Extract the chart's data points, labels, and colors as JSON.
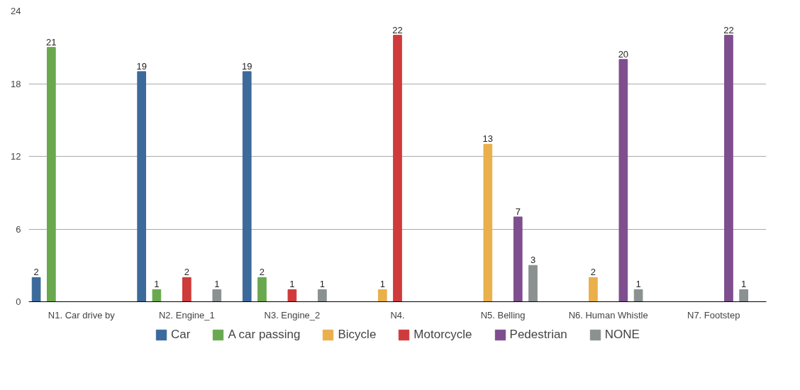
{
  "chart_data": {
    "type": "bar",
    "categories": [
      "N1. Car drive by",
      "N2. Engine_1",
      "N3. Engine_2",
      "N4.",
      "N5. Belling",
      "N6. Human Whistle",
      "N7. Footstep"
    ],
    "series": [
      {
        "name": "Car",
        "color": "#3b6a9b",
        "values": [
          2,
          19,
          19,
          null,
          null,
          null,
          null
        ]
      },
      {
        "name": "A car passing",
        "color": "#6aa84f",
        "values": [
          21,
          1,
          2,
          null,
          null,
          null,
          null
        ]
      },
      {
        "name": "Bicycle",
        "color": "#e9b04b",
        "values": [
          null,
          null,
          null,
          1,
          13,
          2,
          null
        ]
      },
      {
        "name": "Motorcycle",
        "color": "#cf3a3b",
        "values": [
          null,
          2,
          1,
          22,
          null,
          null,
          null
        ]
      },
      {
        "name": "Pedestrian",
        "color": "#7e4e8e",
        "values": [
          null,
          null,
          null,
          null,
          7,
          20,
          22
        ]
      },
      {
        "name": "NONE",
        "color": "#8b9090",
        "values": [
          null,
          1,
          1,
          null,
          3,
          1,
          1
        ]
      }
    ],
    "ylim": [
      0,
      24
    ],
    "yticks": [
      0,
      6,
      12,
      18,
      24
    ],
    "grid": "y",
    "legend": "bottom",
    "data_labels": true
  }
}
